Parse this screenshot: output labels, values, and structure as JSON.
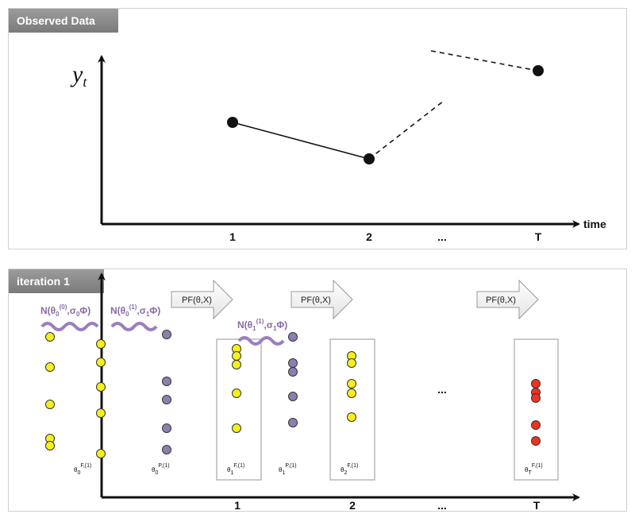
{
  "top_panel": {
    "title": "Observed Data",
    "y_label": "y",
    "y_sub": "t",
    "x_label": "time",
    "ticks": [
      "1",
      "2",
      "...",
      "T"
    ]
  },
  "bottom_panel": {
    "title": "iteration 1",
    "ticks": [
      "1",
      "2",
      "...",
      "T"
    ],
    "priors": [
      {
        "base": "N(θ",
        "sub": "0",
        "sup": "(0)",
        "rest": ",σ",
        "rest_sub": "0",
        "end": "Φ)"
      },
      {
        "base": "N(θ",
        "sub": "0",
        "sup": "(1)",
        "rest": ",σ",
        "rest_sub": "1",
        "end": "Φ)"
      },
      {
        "base": "N(θ",
        "sub": "1",
        "sup": "(1)",
        "rest": ",σ",
        "rest_sub": "1",
        "end": "Φ)"
      }
    ],
    "pf_arrows": [
      "PF(θ,X)",
      "PF(θ,X)",
      "PF(θ,X)"
    ],
    "ellipsis": "...",
    "particle_labels": [
      {
        "base": "θ",
        "sub": "0",
        "sup": "F,(1)"
      },
      {
        "base": "θ",
        "sub": "0",
        "sup": "P,(1)"
      },
      {
        "base": "θ",
        "sub": "1",
        "sup": "F,(1)"
      },
      {
        "base": "θ",
        "sub": "1",
        "sup": "P,(1)"
      },
      {
        "base": "θ",
        "sub": "2",
        "sup": "F,(1)"
      },
      {
        "base": "θ",
        "sub": "T",
        "sup": "F,(1)"
      }
    ]
  },
  "colors": {
    "yellow": "#f5ef1a",
    "purple": "#8f7fb0",
    "red": "#ee3322",
    "prior_text": "#8a6aa8",
    "wave": "#9b7fc0"
  }
}
